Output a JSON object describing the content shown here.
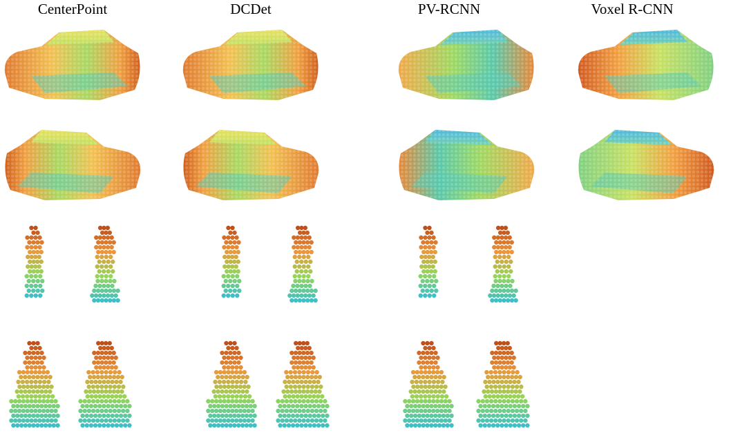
{
  "columns": [
    "CenterPoint",
    "DCDet",
    "PV-RCNN",
    "Voxel R-CNN"
  ]
}
